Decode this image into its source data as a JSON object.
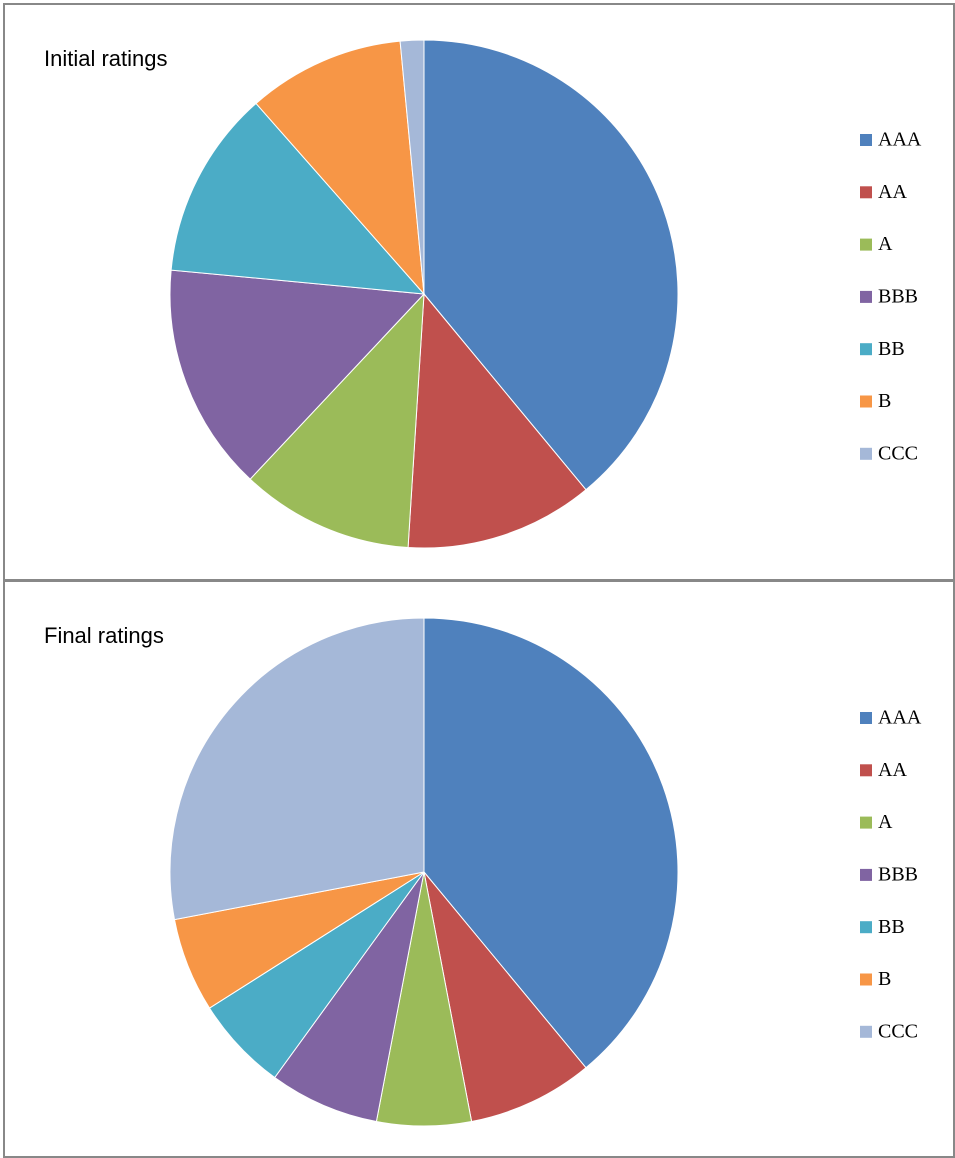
{
  "chart_data": [
    {
      "type": "pie",
      "title": "Initial ratings",
      "categories": [
        "AAA",
        "AA",
        "A",
        "BBB",
        "BB",
        "B",
        "CCC"
      ],
      "values": [
        39,
        12,
        11,
        14.5,
        12,
        10,
        1.5
      ],
      "colors": [
        "#4f81bd",
        "#c0504d",
        "#9bbb59",
        "#8064a2",
        "#4bacc6",
        "#f79646",
        "#a5b8d8"
      ],
      "legend": "right"
    },
    {
      "type": "pie",
      "title": "Final ratings",
      "categories": [
        "AAA",
        "AA",
        "A",
        "BBB",
        "BB",
        "B",
        "CCC"
      ],
      "values": [
        39,
        8,
        6,
        7,
        6,
        6,
        28
      ],
      "colors": [
        "#4f81bd",
        "#c0504d",
        "#9bbb59",
        "#8064a2",
        "#4bacc6",
        "#f79646",
        "#a5b8d8"
      ],
      "legend": "right"
    }
  ]
}
